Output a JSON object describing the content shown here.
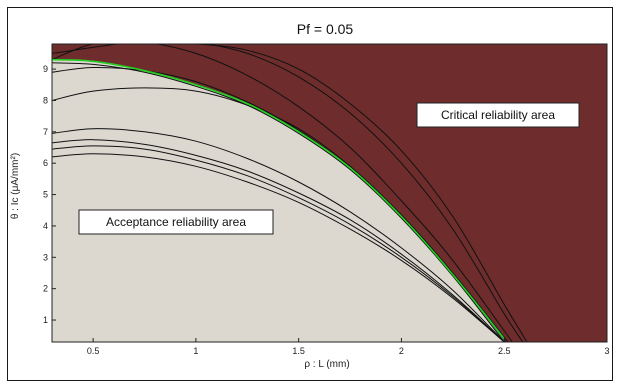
{
  "chart_data": {
    "type": "area",
    "title": "Pf = 0.05",
    "xlabel": "ρ : L (mm)",
    "ylabel": "θ : Ic (μA/mm²)",
    "xlim": [
      0.3,
      3.0
    ],
    "ylim": [
      0.3,
      9.8
    ],
    "xticks": [
      0.5,
      1,
      1.5,
      2,
      2.5,
      3
    ],
    "xtick_labels": [
      "0.5",
      "1",
      "1.5",
      "2",
      "2.5",
      "3"
    ],
    "yticks": [
      1,
      2,
      3,
      4,
      5,
      6,
      7,
      8,
      9
    ],
    "ytick_labels": [
      "1",
      "2",
      "3",
      "4",
      "5",
      "6",
      "7",
      "8",
      "9"
    ],
    "grid": false,
    "colors": {
      "critical": "#6e2c2c",
      "acceptance": "#dcd8d0",
      "boundary": "#22d022",
      "curves": "#111111"
    },
    "annotations": {
      "critical": "Critical reliability area",
      "acceptance": "Acceptance reliability area"
    },
    "boundary": {
      "x": [
        0.3,
        0.5,
        0.75,
        1.0,
        1.25,
        1.5,
        1.75,
        2.0,
        2.25,
        2.5
      ],
      "y": [
        9.3,
        9.25,
        8.95,
        8.5,
        7.9,
        7.0,
        5.85,
        4.3,
        2.45,
        0.4
      ]
    },
    "series": [
      {
        "x": [
          0.3,
          0.5,
          0.75,
          1.0,
          1.25,
          1.5,
          1.75,
          2.0,
          2.25,
          2.55
        ],
        "y": [
          9.3,
          9.8,
          9.85,
          9.5,
          8.8,
          7.8,
          6.5,
          4.8,
          2.9,
          0.2
        ]
      },
      {
        "x": [
          0.3,
          0.75,
          1.0,
          1.25,
          1.5,
          1.75,
          2.0,
          2.25,
          2.5,
          2.6
        ],
        "y": [
          9.5,
          9.9,
          9.85,
          9.5,
          8.75,
          7.6,
          6.0,
          3.9,
          1.2,
          0.2
        ]
      },
      {
        "x": [
          0.8,
          1.0,
          1.25,
          1.5,
          1.75,
          2.0,
          2.25,
          2.5,
          2.62
        ],
        "y": [
          9.8,
          9.8,
          9.6,
          9.0,
          7.9,
          6.4,
          4.3,
          1.5,
          0.2
        ]
      },
      {
        "x": [
          0.3,
          0.5,
          0.75,
          1.0,
          1.25,
          1.5,
          1.75,
          2.0,
          2.25,
          2.5
        ],
        "y": [
          9.2,
          9.15,
          8.9,
          8.45,
          7.85,
          6.95,
          5.8,
          4.25,
          2.4,
          0.3
        ]
      },
      {
        "x": [
          0.3,
          0.5,
          0.75,
          1.0,
          1.25,
          1.5,
          1.75,
          2.0,
          2.25,
          2.52
        ],
        "y": [
          8.9,
          9.05,
          8.95,
          8.6,
          7.95,
          7.05,
          5.85,
          4.3,
          2.45,
          0.2
        ]
      },
      {
        "x": [
          0.3,
          0.5,
          0.75,
          1.0,
          1.25,
          1.5,
          1.75,
          2.0,
          2.25,
          2.53
        ],
        "y": [
          8.0,
          8.3,
          8.4,
          8.3,
          7.85,
          7.1,
          5.9,
          4.35,
          2.5,
          0.2
        ]
      },
      {
        "x": [
          0.3,
          0.5,
          0.75,
          1.0,
          1.25,
          1.5,
          1.75,
          2.0,
          2.25,
          2.5
        ],
        "y": [
          6.95,
          7.1,
          7.0,
          6.7,
          6.15,
          5.4,
          4.45,
          3.3,
          1.95,
          0.3
        ]
      },
      {
        "x": [
          0.3,
          0.5,
          0.75,
          1.0,
          1.25,
          1.5,
          1.75,
          2.0,
          2.25,
          2.5
        ],
        "y": [
          6.65,
          6.75,
          6.6,
          6.25,
          5.75,
          5.05,
          4.2,
          3.1,
          1.8,
          0.3
        ]
      },
      {
        "x": [
          0.3,
          0.5,
          0.75,
          1.0,
          1.25,
          1.5,
          1.75,
          2.0,
          2.25,
          2.5
        ],
        "y": [
          6.45,
          6.55,
          6.45,
          6.1,
          5.6,
          4.9,
          4.05,
          3.0,
          1.75,
          0.3
        ]
      },
      {
        "x": [
          0.3,
          0.5,
          0.75,
          1.0,
          1.25,
          1.5,
          1.75,
          2.0,
          2.25,
          2.5
        ],
        "y": [
          6.2,
          6.3,
          6.2,
          5.9,
          5.4,
          4.75,
          3.9,
          2.9,
          1.7,
          0.3
        ]
      }
    ]
  }
}
